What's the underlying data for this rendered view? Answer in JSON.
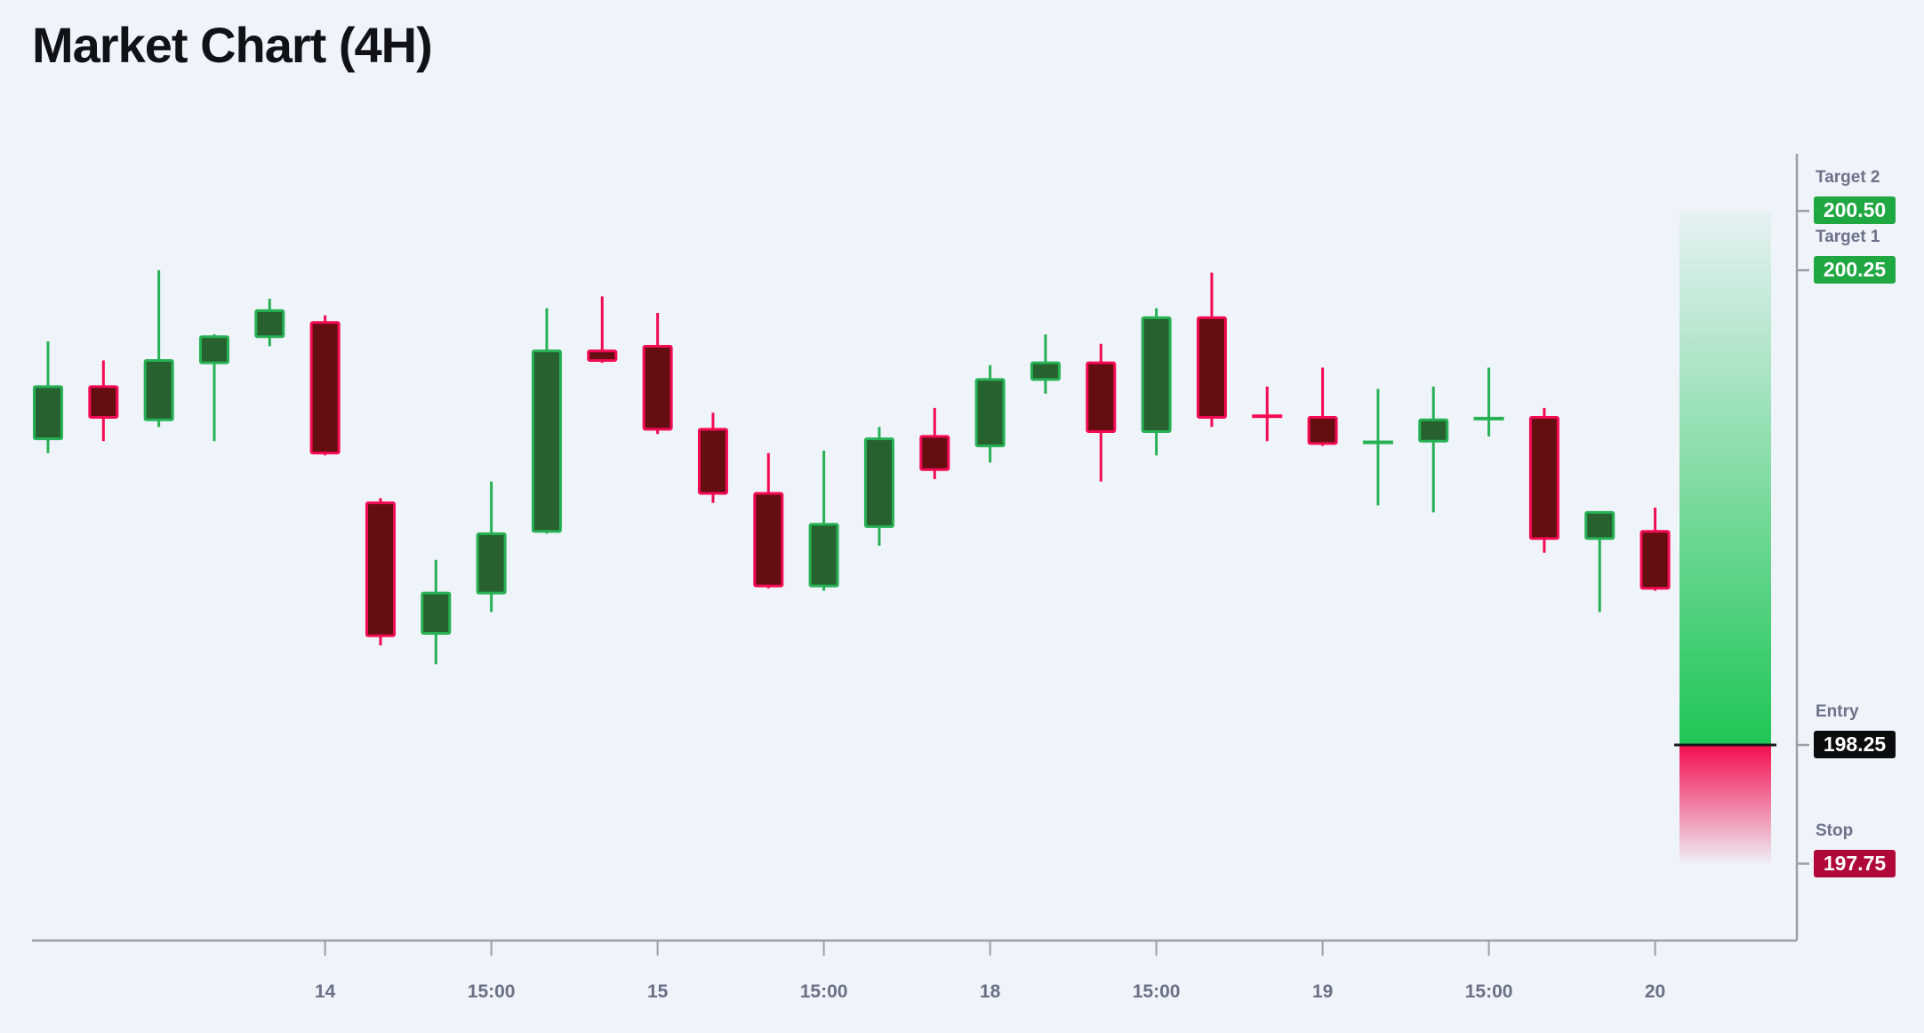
{
  "title": "Market Chart (4H)",
  "colors": {
    "background": "#eff3fa",
    "titleColor": "#101218",
    "bullFill": "#27612f",
    "bullStroke": "#27b155",
    "bearFill": "#650e12",
    "bearStroke": "#f40a52",
    "axis": "#999ea9",
    "tickLabel": "#6b7085",
    "levelLabel": "#6d7189",
    "targetBadge": "#1fa742",
    "entryBadge": "#0b0c0e",
    "stopBadge": "#b00838",
    "badgeText": "#ffffff",
    "zoneGreen": "#1ec655",
    "zoneRed": "#f20e4e",
    "entryLine": "#16181d"
  },
  "chart_data": {
    "type": "candlestick",
    "title": "Market Chart (4H)",
    "timeframe": "4H",
    "grid": "off",
    "legend": "none",
    "y_visible_range": [
      197.6,
      200.9
    ],
    "x_ticks": [
      {
        "candle_index": 5,
        "label": "14"
      },
      {
        "candle_index": 8,
        "label": "15:00"
      },
      {
        "candle_index": 11,
        "label": "15"
      },
      {
        "candle_index": 14,
        "label": "15:00"
      },
      {
        "candle_index": 17,
        "label": "18"
      },
      {
        "candle_index": 20,
        "label": "15:00"
      },
      {
        "candle_index": 23,
        "label": "19"
      },
      {
        "candle_index": 26,
        "label": "15:00"
      },
      {
        "candle_index": 29,
        "label": "20"
      }
    ],
    "candles": [
      {
        "o": 199.54,
        "h": 199.95,
        "l": 199.48,
        "c": 199.76
      },
      {
        "o": 199.76,
        "h": 199.87,
        "l": 199.53,
        "c": 199.63
      },
      {
        "o": 199.62,
        "h": 200.25,
        "l": 199.59,
        "c": 199.87
      },
      {
        "o": 199.86,
        "h": 199.98,
        "l": 199.53,
        "c": 199.97
      },
      {
        "o": 199.97,
        "h": 200.13,
        "l": 199.93,
        "c": 200.08
      },
      {
        "o": 200.03,
        "h": 200.06,
        "l": 199.47,
        "c": 199.48
      },
      {
        "o": 199.27,
        "h": 199.29,
        "l": 198.67,
        "c": 198.71
      },
      {
        "o": 198.72,
        "h": 199.03,
        "l": 198.59,
        "c": 198.89
      },
      {
        "o": 198.89,
        "h": 199.36,
        "l": 198.81,
        "c": 199.14
      },
      {
        "o": 199.15,
        "h": 200.09,
        "l": 199.14,
        "c": 199.91
      },
      {
        "o": 199.91,
        "h": 200.14,
        "l": 199.86,
        "c": 199.87
      },
      {
        "o": 199.93,
        "h": 200.07,
        "l": 199.56,
        "c": 199.58
      },
      {
        "o": 199.58,
        "h": 199.65,
        "l": 199.27,
        "c": 199.31
      },
      {
        "o": 199.31,
        "h": 199.48,
        "l": 198.91,
        "c": 198.92
      },
      {
        "o": 198.92,
        "h": 199.49,
        "l": 198.9,
        "c": 199.18
      },
      {
        "o": 199.17,
        "h": 199.59,
        "l": 199.09,
        "c": 199.54
      },
      {
        "o": 199.55,
        "h": 199.67,
        "l": 199.37,
        "c": 199.41
      },
      {
        "o": 199.51,
        "h": 199.85,
        "l": 199.44,
        "c": 199.79
      },
      {
        "o": 199.79,
        "h": 199.98,
        "l": 199.73,
        "c": 199.86
      },
      {
        "o": 199.86,
        "h": 199.94,
        "l": 199.36,
        "c": 199.57
      },
      {
        "o": 199.57,
        "h": 200.09,
        "l": 199.47,
        "c": 200.05
      },
      {
        "o": 200.05,
        "h": 200.24,
        "l": 199.59,
        "c": 199.63
      },
      {
        "o": 199.64,
        "h": 199.76,
        "l": 199.53,
        "c": 199.63
      },
      {
        "o": 199.63,
        "h": 199.84,
        "l": 199.51,
        "c": 199.52
      },
      {
        "o": 199.52,
        "h": 199.75,
        "l": 199.26,
        "c": 199.53
      },
      {
        "o": 199.53,
        "h": 199.76,
        "l": 199.23,
        "c": 199.62
      },
      {
        "o": 199.62,
        "h": 199.84,
        "l": 199.55,
        "c": 199.63
      },
      {
        "o": 199.63,
        "h": 199.67,
        "l": 199.06,
        "c": 199.12
      },
      {
        "o": 199.12,
        "h": 199.23,
        "l": 198.81,
        "c": 199.23
      },
      {
        "o": 199.15,
        "h": 199.25,
        "l": 198.9,
        "c": 198.91
      }
    ],
    "levels": {
      "target2": {
        "label": "Target 2",
        "value": "200.50",
        "price": 200.5
      },
      "target1": {
        "label": "Target 1",
        "value": "200.25",
        "price": 200.25
      },
      "entry": {
        "label": "Entry",
        "value": "198.25",
        "price": 198.25
      },
      "stop": {
        "label": "Stop",
        "value": "197.75",
        "price": 197.75
      }
    }
  }
}
